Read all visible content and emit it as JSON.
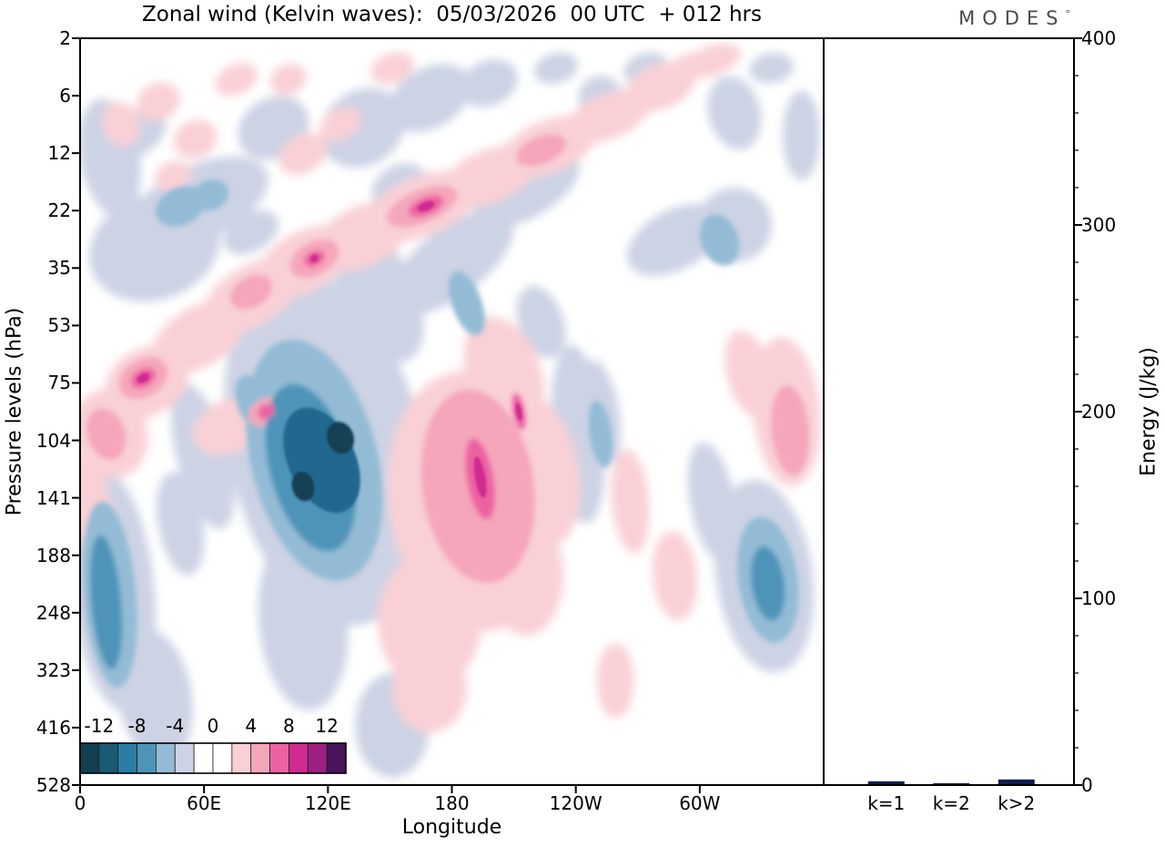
{
  "title": "Zonal wind (Kelvin waves):  05/03/2026  00 UTC  + 012 hrs",
  "logo": {
    "text": "MODES",
    "sup": "°"
  },
  "palette": {
    "b1": "#ccd3e4",
    "b2": "#93bbd5",
    "b3": "#4e94b8",
    "b4": "#20688e",
    "b5": "#123f52",
    "p1": "#f9d0d5",
    "p2": "#f5a6bb",
    "p3": "#ec62a0",
    "p4": "#cf2b91",
    "bar": "#101c54",
    "frame": "#000000"
  },
  "chart_data": [
    {
      "type": "heatmap",
      "representation": "filled_contour_approximation",
      "title": "Zonal wind (Kelvin waves):  05/03/2026  00 UTC  + 012 hrs",
      "xlabel": "Longitude",
      "ylabel": "Pressure levels (hPa)",
      "x_ticks": [
        "0",
        "60E",
        "120E",
        "180",
        "120W",
        "60W"
      ],
      "y_ticks": [
        "2",
        "6",
        "12",
        "22",
        "35",
        "53",
        "75",
        "104",
        "141",
        "188",
        "248",
        "323",
        "416",
        "528"
      ],
      "colorbar": {
        "tick_labels": [
          "-12",
          "-8",
          "-4",
          "0",
          "4",
          "8",
          "12"
        ],
        "levels_min": -14,
        "levels_max": 14,
        "colors": [
          "#123f52",
          "#1b5a74",
          "#2b7da4",
          "#4e94b8",
          "#93bbd5",
          "#ccd3e4",
          "#ffffff",
          "#ffffff",
          "#f9d0d5",
          "#f5a6bb",
          "#ec62a0",
          "#cf2b91",
          "#9c2180",
          "#4a1458"
        ]
      },
      "field_blobs": [
        [
          0.33,
          0.55,
          0.13,
          0.24,
          -12,
          "b1"
        ],
        [
          0.3,
          0.78,
          0.06,
          0.12,
          -5,
          "b1"
        ],
        [
          0.4,
          0.34,
          0.05,
          0.1,
          -25,
          "b1"
        ],
        [
          0.5,
          0.3,
          0.1,
          0.045,
          -38,
          "b1"
        ],
        [
          0.6,
          0.2,
          0.08,
          0.04,
          -30,
          "b1"
        ],
        [
          0.1,
          0.28,
          0.09,
          0.07,
          -20,
          "b1"
        ],
        [
          0.16,
          0.22,
          0.1,
          0.05,
          -25,
          "b1"
        ],
        [
          0.04,
          0.16,
          0.04,
          0.08,
          -10,
          "b1"
        ],
        [
          0.07,
          0.13,
          0.05,
          0.03,
          -30,
          "b1"
        ],
        [
          0.26,
          0.12,
          0.05,
          0.04,
          -30,
          "b1"
        ],
        [
          0.38,
          0.12,
          0.06,
          0.05,
          -35,
          "b1"
        ],
        [
          0.47,
          0.08,
          0.06,
          0.04,
          -30,
          "b1"
        ],
        [
          0.55,
          0.06,
          0.04,
          0.03,
          -25,
          "b1"
        ],
        [
          0.64,
          0.04,
          0.03,
          0.02,
          -15,
          "b1"
        ],
        [
          0.43,
          0.2,
          0.04,
          0.03,
          -30,
          "b1"
        ],
        [
          0.7,
          0.08,
          0.03,
          0.03,
          0,
          "b1"
        ],
        [
          0.76,
          0.04,
          0.03,
          0.02,
          -20,
          "b1"
        ],
        [
          0.93,
          0.04,
          0.03,
          0.02,
          -10,
          "b1"
        ],
        [
          0.88,
          0.1,
          0.035,
          0.05,
          -15,
          "b1"
        ],
        [
          0.97,
          0.13,
          0.025,
          0.06,
          0,
          "b1"
        ],
        [
          0.8,
          0.27,
          0.07,
          0.04,
          -28,
          "b1"
        ],
        [
          0.88,
          0.25,
          0.05,
          0.05,
          -20,
          "b1"
        ],
        [
          0.92,
          0.72,
          0.065,
          0.13,
          -8,
          "b1"
        ],
        [
          0.85,
          0.62,
          0.03,
          0.08,
          -10,
          "b1"
        ],
        [
          0.67,
          0.53,
          0.035,
          0.12,
          -5,
          "b1"
        ],
        [
          0.7,
          0.5,
          0.025,
          0.07,
          -10,
          "b1"
        ],
        [
          0.045,
          0.74,
          0.055,
          0.16,
          -5,
          "b1"
        ],
        [
          0.1,
          0.88,
          0.05,
          0.09,
          -10,
          "b1"
        ],
        [
          0.42,
          0.92,
          0.05,
          0.07,
          0,
          "b1"
        ],
        [
          0.165,
          0.56,
          0.035,
          0.1,
          -15,
          "b1"
        ],
        [
          0.135,
          0.65,
          0.03,
          0.07,
          -10,
          "b1"
        ],
        [
          0.62,
          0.38,
          0.03,
          0.05,
          -20,
          "b1"
        ],
        [
          0.56,
          0.44,
          0.025,
          0.05,
          -20,
          "b1"
        ],
        [
          0.23,
          0.26,
          0.04,
          0.025,
          -30,
          "b1"
        ],
        [
          0.04,
          0.53,
          0.05,
          0.06,
          -20,
          "p1"
        ],
        [
          0.09,
          0.46,
          0.06,
          0.045,
          -30,
          "p1"
        ],
        [
          0.16,
          0.4,
          0.07,
          0.04,
          -30,
          "p1"
        ],
        [
          0.23,
          0.345,
          0.07,
          0.04,
          -30,
          "p1"
        ],
        [
          0.3,
          0.3,
          0.07,
          0.04,
          -30,
          "p1"
        ],
        [
          0.38,
          0.265,
          0.07,
          0.04,
          -25,
          "p1"
        ],
        [
          0.46,
          0.225,
          0.08,
          0.04,
          -22,
          "p1"
        ],
        [
          0.55,
          0.185,
          0.07,
          0.035,
          -22,
          "p1"
        ],
        [
          0.63,
          0.145,
          0.07,
          0.035,
          -22,
          "p1"
        ],
        [
          0.71,
          0.105,
          0.06,
          0.03,
          -22,
          "p1"
        ],
        [
          0.78,
          0.065,
          0.05,
          0.03,
          -22,
          "p1"
        ],
        [
          0.85,
          0.03,
          0.04,
          0.02,
          -20,
          "p1"
        ],
        [
          0.01,
          0.62,
          0.03,
          0.06,
          -10,
          "p1"
        ],
        [
          0.2,
          0.52,
          0.05,
          0.035,
          -25,
          "p1"
        ],
        [
          0.255,
          0.485,
          0.04,
          0.03,
          -25,
          "p1"
        ],
        [
          0.305,
          0.45,
          0.035,
          0.025,
          -30,
          "p1"
        ],
        [
          0.53,
          0.62,
          0.115,
          0.175,
          -8,
          "p1"
        ],
        [
          0.57,
          0.45,
          0.05,
          0.08,
          -20,
          "p1"
        ],
        [
          0.47,
          0.78,
          0.07,
          0.09,
          0,
          "p1"
        ],
        [
          0.62,
          0.58,
          0.05,
          0.1,
          -10,
          "p1"
        ],
        [
          0.6,
          0.72,
          0.05,
          0.08,
          0,
          "p1"
        ],
        [
          0.95,
          0.5,
          0.045,
          0.1,
          -5,
          "p1"
        ],
        [
          0.9,
          0.45,
          0.03,
          0.06,
          -15,
          "p1"
        ],
        [
          0.74,
          0.62,
          0.025,
          0.07,
          -5,
          "p1"
        ],
        [
          0.8,
          0.72,
          0.03,
          0.06,
          -5,
          "p1"
        ],
        [
          0.72,
          0.86,
          0.025,
          0.05,
          0,
          "p1"
        ],
        [
          0.47,
          0.87,
          0.05,
          0.06,
          0,
          "p1"
        ],
        [
          0.055,
          0.115,
          0.025,
          0.03,
          -20,
          "p1"
        ],
        [
          0.105,
          0.085,
          0.03,
          0.025,
          -25,
          "p1"
        ],
        [
          0.155,
          0.135,
          0.03,
          0.025,
          -25,
          "p1"
        ],
        [
          0.21,
          0.055,
          0.03,
          0.02,
          -25,
          "p1"
        ],
        [
          0.125,
          0.185,
          0.025,
          0.02,
          -25,
          "p1"
        ],
        [
          0.3,
          0.155,
          0.035,
          0.025,
          -30,
          "p1"
        ],
        [
          0.35,
          0.115,
          0.03,
          0.02,
          -30,
          "p1"
        ],
        [
          0.28,
          0.055,
          0.025,
          0.02,
          -20,
          "p1"
        ],
        [
          0.42,
          0.04,
          0.03,
          0.02,
          -20,
          "p1"
        ],
        [
          0.82,
          0.035,
          0.025,
          0.015,
          -20,
          "p1"
        ],
        [
          0.315,
          0.565,
          0.085,
          0.165,
          -14,
          "b2"
        ],
        [
          0.135,
          0.225,
          0.035,
          0.025,
          -25,
          "b2"
        ],
        [
          0.175,
          0.21,
          0.025,
          0.02,
          -25,
          "b2"
        ],
        [
          0.52,
          0.355,
          0.02,
          0.045,
          -20,
          "b2"
        ],
        [
          0.925,
          0.725,
          0.04,
          0.085,
          -8,
          "b2"
        ],
        [
          0.04,
          0.745,
          0.035,
          0.125,
          -5,
          "b2"
        ],
        [
          0.86,
          0.27,
          0.025,
          0.035,
          -20,
          "b2"
        ],
        [
          0.23,
          0.485,
          0.02,
          0.035,
          -15,
          "b2"
        ],
        [
          0.7,
          0.53,
          0.015,
          0.045,
          -8,
          "b2"
        ],
        [
          0.085,
          0.455,
          0.035,
          0.025,
          -30,
          "p2"
        ],
        [
          0.23,
          0.34,
          0.03,
          0.02,
          -30,
          "p2"
        ],
        [
          0.315,
          0.295,
          0.035,
          0.022,
          -28,
          "p2"
        ],
        [
          0.46,
          0.225,
          0.05,
          0.022,
          -22,
          "p2"
        ],
        [
          0.62,
          0.15,
          0.035,
          0.018,
          -22,
          "p2"
        ],
        [
          0.25,
          0.5,
          0.025,
          0.018,
          -25,
          "p2"
        ],
        [
          0.535,
          0.6,
          0.075,
          0.13,
          -8,
          "p2"
        ],
        [
          0.955,
          0.525,
          0.025,
          0.06,
          -5,
          "p2"
        ],
        [
          0.035,
          0.53,
          0.025,
          0.035,
          -20,
          "p2"
        ],
        [
          0.31,
          0.575,
          0.055,
          0.115,
          -15,
          "b3"
        ],
        [
          0.035,
          0.755,
          0.02,
          0.09,
          -5,
          "b3"
        ],
        [
          0.925,
          0.73,
          0.022,
          0.05,
          -8,
          "b3"
        ],
        [
          0.085,
          0.455,
          0.018,
          0.012,
          -30,
          "p3"
        ],
        [
          0.315,
          0.295,
          0.015,
          0.01,
          -28,
          "p3"
        ],
        [
          0.465,
          0.225,
          0.025,
          0.012,
          -22,
          "p3"
        ],
        [
          0.538,
          0.59,
          0.018,
          0.055,
          -10,
          "p3"
        ],
        [
          0.25,
          0.5,
          0.012,
          0.009,
          -25,
          "p3"
        ],
        [
          0.59,
          0.5,
          0.008,
          0.025,
          -10,
          "p3"
        ],
        [
          0.325,
          0.565,
          0.045,
          0.075,
          -25,
          "b4"
        ],
        [
          0.35,
          0.535,
          0.018,
          0.022,
          -20,
          "b5"
        ],
        [
          0.3,
          0.6,
          0.015,
          0.02,
          -15,
          "b5"
        ],
        [
          0.085,
          0.455,
          0.009,
          0.006,
          -30,
          "p4"
        ],
        [
          0.465,
          0.225,
          0.012,
          0.006,
          -22,
          "p4"
        ],
        [
          0.538,
          0.588,
          0.007,
          0.028,
          -10,
          "p4"
        ],
        [
          0.315,
          0.295,
          0.006,
          0.005,
          -28,
          "p4"
        ],
        [
          0.59,
          0.5,
          0.004,
          0.012,
          -10,
          "p4"
        ]
      ]
    },
    {
      "type": "bar",
      "ylabel": "Energy (J/kg)",
      "categories": [
        "k=1",
        "k=2",
        "k>2"
      ],
      "values": [
        2,
        1,
        3
      ],
      "ylim": [
        0,
        400
      ],
      "y_ticks": [
        "0",
        "100",
        "200",
        "300",
        "400"
      ]
    }
  ]
}
